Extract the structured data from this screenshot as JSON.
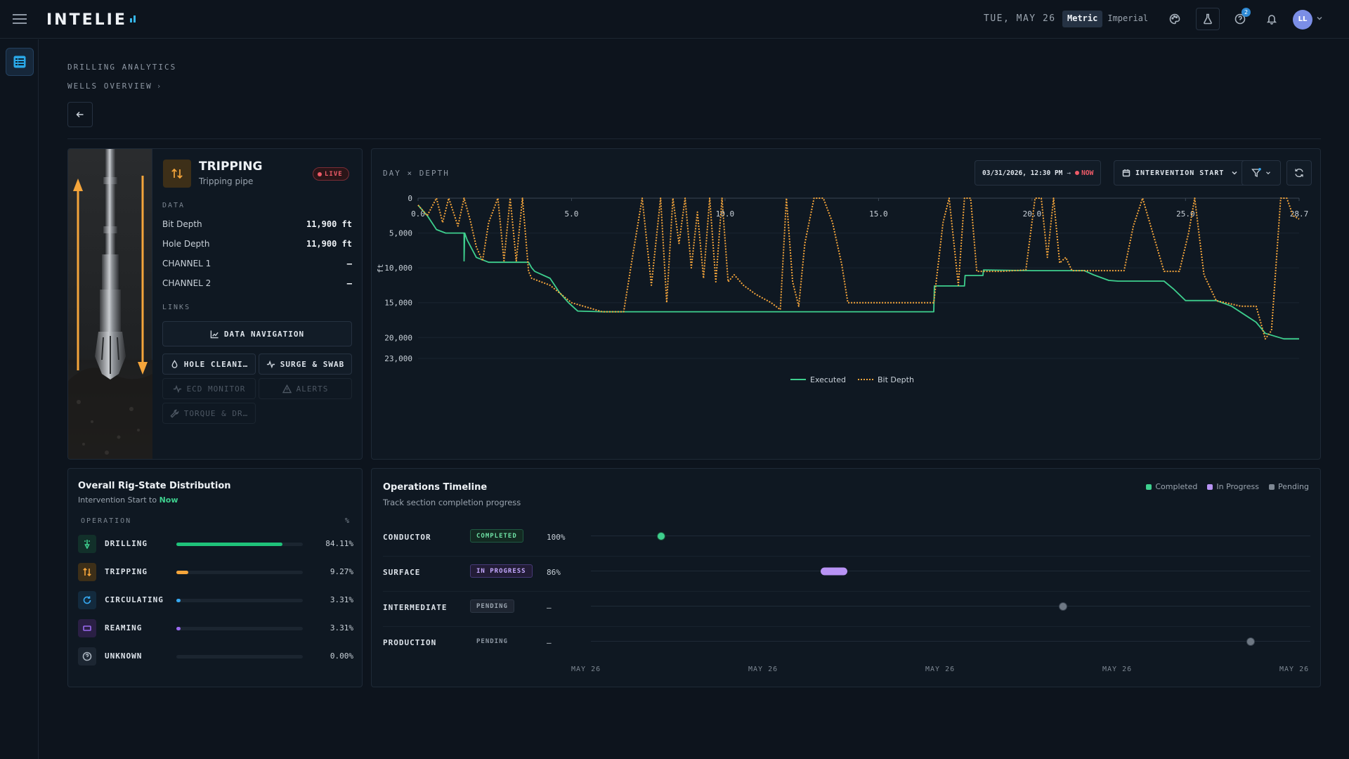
{
  "topbar": {
    "logo_text": "INTELIE",
    "date": "TUE, MAY 26",
    "units": [
      "Metric",
      "Imperial"
    ],
    "active_unit": "Metric",
    "help_badge": "2",
    "avatar_initials": "LL"
  },
  "header": {
    "breadcrumb_top": "DRILLING ANALYTICS",
    "breadcrumb_sub": "WELLS OVERVIEW"
  },
  "state_card": {
    "title": "TRIPPING",
    "subtitle": "Tripping pipe",
    "live_label": "LIVE",
    "data_label": "DATA",
    "rows": [
      {
        "label": "Bit Depth",
        "value": "11,900 ft"
      },
      {
        "label": "Hole Depth",
        "value": "11,900 ft"
      },
      {
        "label": "CHANNEL 1",
        "value": "—"
      },
      {
        "label": "CHANNEL 2",
        "value": "—"
      }
    ],
    "links_label": "LINKS",
    "links": {
      "data_navigation": "DATA NAVIGATION",
      "hole_cleaning": "HOLE CLEANI…",
      "surge_swab": "SURGE & SWAB",
      "ecd_monitor": "ECD MONITOR",
      "alerts": "ALERTS",
      "torque_drag": "TORQUE & DR…"
    }
  },
  "chart_controls": {
    "date_from": "03/31/2026, 12:30 PM",
    "now_label": "NOW",
    "start_select": "INTERVENTION START"
  },
  "chart_data": {
    "type": "line",
    "title": "DAY × DEPTH",
    "ylabel": "ft",
    "xlim": [
      0,
      28.7
    ],
    "ylim": [
      0,
      23000
    ],
    "y_reversed": true,
    "x_ticks": [
      "0.0",
      "5.0",
      "10.0",
      "15.0",
      "20.0",
      "25.0",
      "28.7"
    ],
    "y_ticks": [
      "0",
      "5,000",
      "10,000",
      "15,000",
      "20,000",
      "23,000"
    ],
    "y_tick_values": [
      0,
      5000,
      10000,
      15000,
      20000,
      23000
    ],
    "legend": "bottom-center",
    "colors": {
      "Executed": "#3ecf8e",
      "Bit Depth": "#f5a53b"
    },
    "series": [
      {
        "name": "Executed",
        "x": [
          0.0,
          0.3,
          0.6,
          0.9,
          1.5,
          1.5,
          1.52,
          1.6,
          1.9,
          2.3,
          2.6,
          3.6,
          3.7,
          3.8,
          4.3,
          4.6,
          4.9,
          5.2,
          6.0,
          8.0,
          10.0,
          12.0,
          14.0,
          16.0,
          16.8,
          16.82,
          17.8,
          17.82,
          18.4,
          18.42,
          20.0,
          21.7,
          22.0,
          22.5,
          22.8,
          24.3,
          24.6,
          25.0,
          25.5,
          26.0,
          26.5,
          27.3,
          27.6,
          28.2,
          28.7
        ],
        "y": [
          1000,
          2500,
          4500,
          5000,
          5000,
          9000,
          5000,
          6000,
          8500,
          9200,
          9200,
          9200,
          10000,
          10500,
          11500,
          13500,
          15000,
          16200,
          16300,
          16300,
          16300,
          16300,
          16300,
          16300,
          16300,
          12600,
          12600,
          11100,
          11100,
          10300,
          10400,
          10400,
          11000,
          11800,
          11900,
          11900,
          13000,
          14700,
          14700,
          14700,
          15500,
          17800,
          19400,
          20200,
          20200
        ]
      },
      {
        "name": "Bit Depth",
        "x": [
          0.0,
          0.3,
          0.6,
          0.8,
          1.0,
          1.3,
          1.5,
          1.7,
          1.9,
          2.1,
          2.3,
          2.6,
          2.8,
          3.0,
          3.2,
          3.4,
          3.6,
          3.7,
          4.3,
          5.0,
          6.0,
          6.4,
          6.7,
          7.0,
          7.3,
          7.6,
          7.9,
          8.1,
          8.3,
          8.5,
          8.7,
          8.9,
          9.1,
          9.3,
          9.5,
          9.7,
          9.9,
          10.1,
          10.3,
          10.6,
          11.0,
          11.5,
          11.8,
          12.0,
          12.2,
          12.4,
          12.6,
          12.9,
          13.2,
          13.5,
          13.8,
          14.0,
          14.2,
          14.4,
          14.6,
          14.9,
          16.0,
          16.8,
          17.1,
          17.3,
          17.6,
          17.8,
          18.0,
          18.2,
          18.4,
          19.0,
          19.8,
          20.1,
          20.3,
          20.5,
          20.7,
          20.9,
          21.1,
          21.3,
          22.5,
          23.0,
          23.3,
          23.6,
          24.3,
          24.8,
          25.1,
          25.3,
          25.6,
          26.0,
          26.8,
          27.3,
          27.6,
          27.8,
          28.1,
          28.3,
          28.5,
          28.7
        ],
        "y": [
          1000,
          2500,
          0,
          3500,
          0,
          4000,
          0,
          3200,
          7000,
          9000,
          3500,
          0,
          9000,
          0,
          9000,
          0,
          10500,
          11500,
          12500,
          15000,
          16300,
          16300,
          16300,
          8000,
          0,
          12500,
          0,
          15000,
          0,
          6500,
          0,
          10000,
          2000,
          11500,
          0,
          12000,
          0,
          12000,
          11000,
          12500,
          13800,
          15000,
          16000,
          0,
          12000,
          15500,
          6500,
          0,
          0,
          3500,
          9500,
          15000,
          15000,
          15000,
          15000,
          15000,
          15000,
          15000,
          3500,
          0,
          12500,
          0,
          0,
          10500,
          10500,
          10500,
          10300,
          0,
          0,
          8500,
          0,
          9300,
          8500,
          10400,
          10400,
          10400,
          4000,
          0,
          10500,
          10500,
          5000,
          0,
          11000,
          14700,
          15500,
          15500,
          20200,
          19000,
          0,
          0,
          2500,
          3000
        ]
      }
    ]
  },
  "distribution": {
    "title": "Overall Rig-State Distribution",
    "subtitle_from": "Intervention Start",
    "subtitle_to": "to",
    "subtitle_now": "Now",
    "head_op": "OPERATION",
    "head_pct": "%",
    "rows": [
      {
        "name": "DRILLING",
        "pct": "84.11%",
        "value": 84.11,
        "color": "#1fc27a",
        "icon": "drill-icon"
      },
      {
        "name": "TRIPPING",
        "pct": "9.27%",
        "value": 9.27,
        "color": "#f5a53b",
        "icon": "arrows-updown-icon"
      },
      {
        "name": "CIRCULATING",
        "pct": "3.31%",
        "value": 3.31,
        "color": "#36a8f0",
        "icon": "circulate-icon"
      },
      {
        "name": "REAMING",
        "pct": "3.31%",
        "value": 3.31,
        "color": "#9a6af0",
        "icon": "ream-icon"
      },
      {
        "name": "UNKNOWN",
        "pct": "0.00%",
        "value": 0.0,
        "color": "#6e7884",
        "icon": "question-icon"
      }
    ]
  },
  "timeline": {
    "title": "Operations Timeline",
    "subtitle": "Track section completion progress",
    "legend": [
      "Completed",
      "In Progress",
      "Pending"
    ],
    "legend_colors": [
      "#3ecf8e",
      "#b893f5",
      "#7d8792"
    ],
    "rows": [
      {
        "section": "CONDUCTOR",
        "status": "COMPLETED",
        "progress_label": "100%",
        "position": 0.098
      },
      {
        "section": "SURFACE",
        "status": "IN PROGRESS",
        "progress_label": "86%",
        "position": 0.338
      },
      {
        "section": "INTERMEDIATE",
        "status": "PENDING",
        "progress_label": "—",
        "position": 0.656
      },
      {
        "section": "PRODUCTION",
        "status": "PENDING",
        "progress_label": "—",
        "position": 0.917
      }
    ],
    "axis_labels": [
      "MAY 26",
      "MAY 26",
      "MAY 26",
      "MAY 26",
      "MAY 26"
    ]
  }
}
